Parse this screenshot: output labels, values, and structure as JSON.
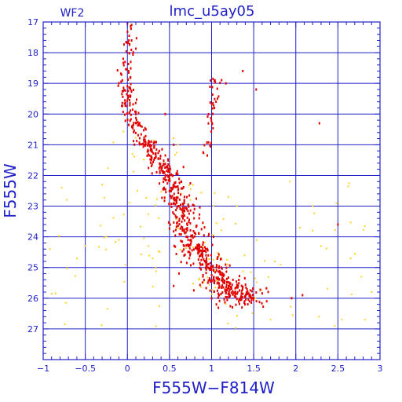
{
  "chart_data": {
    "type": "scatter",
    "title": "lmc_u5ay05",
    "corner_label": "WF2",
    "xlabel": "F555W−F814W",
    "ylabel": "F555W",
    "xlim": [
      -1,
      3
    ],
    "ylim": [
      28,
      17
    ],
    "y_inverted": true,
    "grid": true,
    "x_ticks": [
      -1,
      -0.5,
      0,
      0.5,
      1,
      1.5,
      2,
      2.5,
      3
    ],
    "x_tick_labels": [
      "−1",
      "−0.5",
      "0",
      "0.5",
      "1",
      "1.5",
      "2",
      "2.5",
      "3"
    ],
    "y_ticks": [
      17,
      18,
      19,
      20,
      21,
      22,
      23,
      24,
      25,
      26,
      27
    ],
    "y_tick_labels": [
      "17",
      "18",
      "19",
      "20",
      "21",
      "22",
      "23",
      "24",
      "25",
      "26",
      "27"
    ],
    "colors": {
      "axis": "#2020c8",
      "grid": "#2020c8",
      "series_red": "#e00000",
      "series_yellow": "#ffd21e"
    },
    "series": [
      {
        "color": "#e00000",
        "point_count": 800,
        "ridge": [
          [
            0.0,
            17.0
          ],
          [
            0.02,
            18.0
          ],
          [
            -0.02,
            19.0
          ],
          [
            0.0,
            19.6
          ],
          [
            0.07,
            20.2
          ],
          [
            0.18,
            20.8
          ],
          [
            0.32,
            21.3
          ],
          [
            0.5,
            22.0
          ],
          [
            0.6,
            22.7
          ],
          [
            0.68,
            23.5
          ],
          [
            0.8,
            24.3
          ],
          [
            0.95,
            24.9
          ],
          [
            1.12,
            25.5
          ],
          [
            1.28,
            25.9
          ],
          [
            1.45,
            26.0
          ]
        ],
        "branch": [
          [
            1.05,
            18.8
          ],
          [
            1.02,
            19.5
          ],
          [
            0.98,
            20.5
          ],
          [
            0.95,
            21.3
          ]
        ],
        "sample": [
          [
            0.0,
            17.05
          ],
          [
            0.05,
            17.6
          ],
          [
            -0.05,
            18.2
          ],
          [
            0.04,
            18.3
          ],
          [
            -0.06,
            18.9
          ],
          [
            0.03,
            19.4
          ],
          [
            0.1,
            20.0
          ],
          [
            0.22,
            20.5
          ],
          [
            0.45,
            20.0
          ],
          [
            0.55,
            21.0
          ],
          [
            0.5,
            22.0
          ],
          [
            0.6,
            23.0
          ],
          [
            0.7,
            24.0
          ],
          [
            0.85,
            24.5
          ],
          [
            1.0,
            25.0
          ],
          [
            1.2,
            25.6
          ],
          [
            1.5,
            26.0
          ],
          [
            1.07,
            19.5
          ],
          [
            1.17,
            19.0
          ],
          [
            1.37,
            18.6
          ],
          [
            1.53,
            19.2
          ],
          [
            2.28,
            20.3
          ],
          [
            2.5,
            23.6
          ],
          [
            0.55,
            25.6
          ],
          [
            1.95,
            26.0
          ],
          [
            2.08,
            25.9
          ]
        ]
      },
      {
        "color": "#ffd21e",
        "point_count": 130,
        "sample": [
          [
            -0.92,
            24.4
          ],
          [
            -0.78,
            22.4
          ],
          [
            -0.6,
            24.7
          ],
          [
            -0.5,
            24.3
          ],
          [
            -0.3,
            22.3
          ],
          [
            -0.25,
            24.0
          ],
          [
            -0.1,
            24.1
          ],
          [
            0.12,
            22.5
          ],
          [
            0.25,
            24.3
          ],
          [
            0.3,
            24.7
          ],
          [
            0.6,
            21.0
          ],
          [
            1.2,
            22.7
          ],
          [
            1.3,
            23.0
          ],
          [
            1.75,
            24.8
          ],
          [
            1.82,
            24.9
          ],
          [
            1.93,
            22.2
          ],
          [
            2.05,
            23.7
          ],
          [
            2.2,
            23.8
          ],
          [
            2.3,
            24.3
          ],
          [
            2.65,
            24.7
          ],
          [
            2.78,
            25.3
          ],
          [
            2.82,
            26.7
          ],
          [
            2.9,
            25.8
          ],
          [
            1.7,
            26.7
          ],
          [
            1.52,
            26.0
          ]
        ]
      }
    ]
  }
}
